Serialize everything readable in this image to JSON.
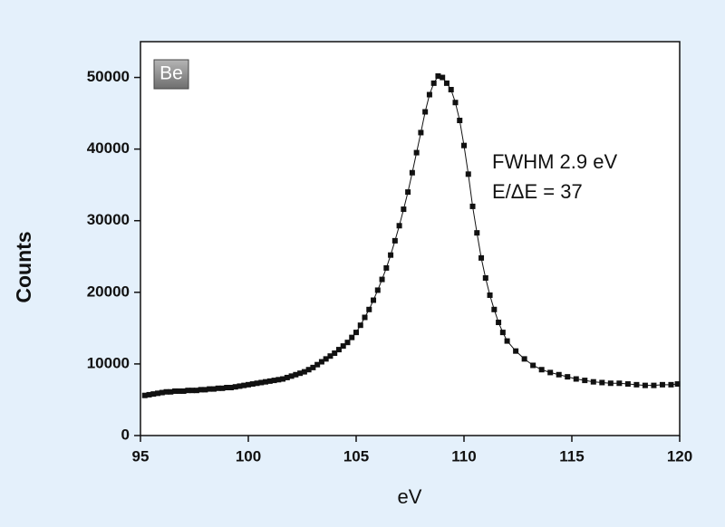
{
  "chart_data": {
    "type": "line",
    "xlabel": "eV",
    "ylabel": "Counts",
    "annotations": [
      "Be",
      "FWHM 2.9 eV",
      "E/ΔE = 37"
    ],
    "color": "#111111",
    "xlim": [
      95,
      120
    ],
    "ylim": [
      0,
      55000
    ],
    "xticks": [
      95,
      100,
      105,
      110,
      115,
      120
    ],
    "yticks": [
      0,
      10000,
      20000,
      30000,
      40000,
      50000
    ],
    "x": [
      95.2,
      95.4,
      95.6,
      95.8,
      96.0,
      96.2,
      96.4,
      96.6,
      96.8,
      97.0,
      97.2,
      97.4,
      97.6,
      97.8,
      98.0,
      98.2,
      98.4,
      98.6,
      98.8,
      99.0,
      99.2,
      99.4,
      99.6,
      99.8,
      100.0,
      100.2,
      100.4,
      100.6,
      100.8,
      101.0,
      101.2,
      101.4,
      101.6,
      101.8,
      102.0,
      102.2,
      102.4,
      102.6,
      102.8,
      103.0,
      103.2,
      103.4,
      103.6,
      103.8,
      104.0,
      104.2,
      104.4,
      104.6,
      104.8,
      105.0,
      105.2,
      105.4,
      105.6,
      105.8,
      106.0,
      106.2,
      106.4,
      106.6,
      106.8,
      107.0,
      107.2,
      107.4,
      107.6,
      107.8,
      108.0,
      108.2,
      108.4,
      108.6,
      108.8,
      109.0,
      109.2,
      109.4,
      109.6,
      109.8,
      110.0,
      110.2,
      110.4,
      110.6,
      110.8,
      111.0,
      111.2,
      111.4,
      111.6,
      111.8,
      112.0,
      112.4,
      112.8,
      113.2,
      113.6,
      114.0,
      114.4,
      114.8,
      115.2,
      115.6,
      116.0,
      116.4,
      116.8,
      117.2,
      117.6,
      118.0,
      118.4,
      118.8,
      119.2,
      119.6,
      119.9
    ],
    "values": [
      5600,
      5700,
      5800,
      5900,
      6000,
      6100,
      6100,
      6200,
      6200,
      6200,
      6300,
      6300,
      6300,
      6400,
      6400,
      6500,
      6500,
      6600,
      6600,
      6700,
      6700,
      6800,
      6900,
      7000,
      7100,
      7200,
      7300,
      7400,
      7500,
      7600,
      7700,
      7800,
      7900,
      8100,
      8300,
      8500,
      8700,
      8900,
      9200,
      9500,
      9900,
      10300,
      10700,
      11100,
      11500,
      12000,
      12500,
      13000,
      13700,
      14400,
      15400,
      16500,
      17600,
      18900,
      20300,
      21800,
      23400,
      25200,
      27200,
      29300,
      31600,
      34000,
      36700,
      39500,
      42300,
      45200,
      47600,
      49200,
      50200,
      50000,
      49200,
      48300,
      46500,
      44000,
      40500,
      36500,
      32000,
      28300,
      24800,
      22000,
      19600,
      17600,
      15800,
      14400,
      13200,
      11800,
      10700,
      9800,
      9200,
      8800,
      8500,
      8200,
      7900,
      7700,
      7500,
      7400,
      7300,
      7300,
      7200,
      7100,
      7000,
      7000,
      7100,
      7100,
      7200
    ]
  }
}
